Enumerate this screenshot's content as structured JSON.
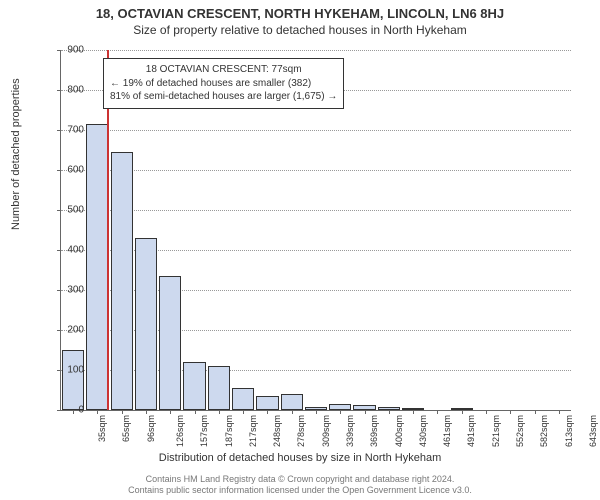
{
  "title": "18, OCTAVIAN CRESCENT, NORTH HYKEHAM, LINCOLN, LN6 8HJ",
  "subtitle": "Size of property relative to detached houses in North Hykeham",
  "y_axis": {
    "label": "Number of detached properties",
    "min": 0,
    "max": 900,
    "tick_step": 100,
    "label_fontsize": 11,
    "tick_fontsize": 10
  },
  "x_axis": {
    "label": "Distribution of detached houses by size in North Hykeham",
    "ticks": [
      "35sqm",
      "65sqm",
      "96sqm",
      "126sqm",
      "157sqm",
      "187sqm",
      "217sqm",
      "248sqm",
      "278sqm",
      "309sqm",
      "339sqm",
      "369sqm",
      "400sqm",
      "430sqm",
      "461sqm",
      "491sqm",
      "521sqm",
      "552sqm",
      "582sqm",
      "613sqm",
      "643sqm"
    ],
    "label_fontsize": 11,
    "tick_fontsize": 9
  },
  "bars": {
    "values": [
      150,
      715,
      645,
      430,
      335,
      120,
      110,
      55,
      35,
      40,
      8,
      15,
      12,
      8,
      4,
      0,
      2,
      0,
      0,
      0,
      0
    ],
    "fill_color": "#cdd9ee",
    "border_color": "#333333",
    "width_fraction": 0.92
  },
  "marker": {
    "size_sqm": 77,
    "color": "#cc3333"
  },
  "info_box": {
    "line1": "18 OCTAVIAN CRESCENT: 77sqm",
    "line2": "← 19% of detached houses are smaller (382)",
    "line3": "81% of semi-detached houses are larger (1,675) →",
    "border_color": "#333333",
    "background_color": "#ffffff",
    "fontsize": 10
  },
  "grid": {
    "color": "#999999",
    "style": "dotted"
  },
  "footer": {
    "line1": "Contains HM Land Registry data © Crown copyright and database right 2024.",
    "line2": "Contains public sector information licensed under the Open Government Licence v3.0.",
    "color": "#777777",
    "fontsize": 9
  },
  "background_color": "#ffffff",
  "axis_color": "#666666",
  "title_fontsize": 13,
  "subtitle_fontsize": 12
}
